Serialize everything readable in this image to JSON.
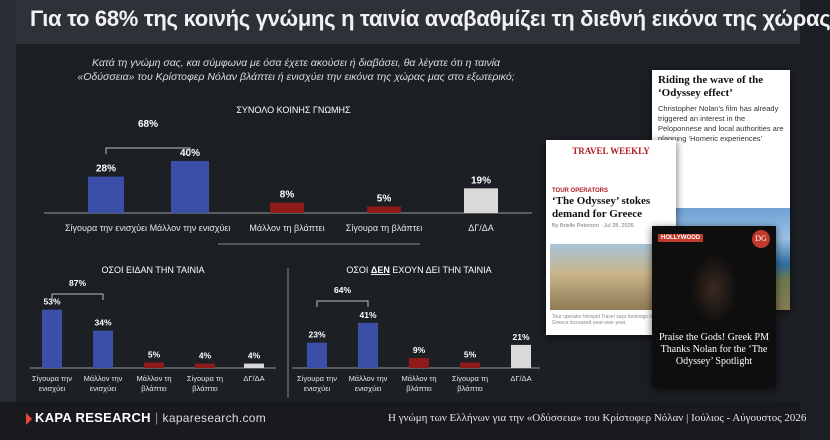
{
  "title": "Για το 68% της κοινής γνώμης η ταινία αναβαθμίζει τη διεθνή εικόνα της χώρας",
  "question_line1": "Κατά τη γνώμη σας, και σύμφωνα με όσα έχετε ακούσει ή διαβάσει, θα λέγατε ότι η ταινία",
  "question_line2": "«Οδύσσεια» του Κρίστοφερ Νόλαν βλάπτει ή ενισχύει την εικόνα της χώρας μας στο εξωτερικό;",
  "colors": {
    "blue": "#3c4fa8",
    "red": "#8f1a1a",
    "gray": "#d9d9d9",
    "bracket": "#bdbdbd"
  },
  "chart_data": [
    {
      "type": "bar",
      "title": "ΣΥΝΟΛΟ ΚΟΙΝΗΣ ΓΝΩΜΗΣ",
      "categories": [
        "Σίγουρα την ενισχύει",
        "Μάλλον την ενισχύει",
        "Μάλλον τη βλάπτει",
        "Σίγουρα τη βλάπτει",
        "ΔΓ/ΔΑ"
      ],
      "values": [
        28,
        40,
        8,
        5,
        19
      ],
      "value_labels": [
        "28%",
        "40%",
        "8%",
        "5%",
        "19%"
      ],
      "bar_colors": [
        "blue",
        "blue",
        "red",
        "red",
        "gray"
      ],
      "bracket": {
        "from": 0,
        "to": 1,
        "label": "68%"
      }
    },
    {
      "type": "bar",
      "title": "ΟΣΟΙ ΕΙΔΑΝ ΤΗΝ ΤΑΙΝΙΑ",
      "categories": [
        "Σίγουρα την ενισχύει",
        "Μάλλον την ενισχύει",
        "Μάλλον τη βλάπτει",
        "Σίγουρα τη βλάπτει",
        "ΔΓ/ΔΑ"
      ],
      "values": [
        53,
        34,
        5,
        4,
        4
      ],
      "value_labels": [
        "53%",
        "34%",
        "5%",
        "4%",
        "4%"
      ],
      "bar_colors": [
        "blue",
        "blue",
        "red",
        "red",
        "gray"
      ],
      "bracket": {
        "from": 0,
        "to": 1,
        "label": "87%"
      }
    },
    {
      "type": "bar",
      "title_pre": "ΟΣΟΙ ",
      "title_emph": "ΔΕΝ",
      "title_post": " ΕΧΟΥΝ ΔΕΙ ΤΗΝ ΤΑΙΝΙΑ",
      "categories": [
        "Σίγουρα την ενισχύει",
        "Μάλλον την ενισχύει",
        "Μάλλον τη βλάπτει",
        "Σίγουρα τη βλάπτει",
        "ΔΓ/ΔΑ"
      ],
      "values": [
        23,
        41,
        9,
        5,
        21
      ],
      "value_labels": [
        "23%",
        "41%",
        "9%",
        "5%",
        "21%"
      ],
      "bar_colors": [
        "blue",
        "blue",
        "red",
        "red",
        "gray"
      ],
      "bracket": {
        "from": 0,
        "to": 1,
        "label": "64%"
      }
    }
  ],
  "cards": {
    "card1": {
      "headline": "Riding the wave of the ‘Odyssey effect’",
      "body": "Christopher Nolan’s film has already triggered an interest in the Peloponnese and local authorities are planning ‘Homeric experiences’"
    },
    "card2": {
      "masthead": "TRAVEL WEEKLY",
      "tag": "TOUR OPERATORS",
      "headline": "‘The Odyssey’ stokes demand for Greece",
      "byline": "By Brielle Peterson · Jul 28, 2026",
      "caption": "Tour operator Intrepid Travel says bookings to Greece increased year-over-year."
    },
    "card3": {
      "label": "HOLLYWOOD",
      "badge": "DG",
      "headline": "Praise the Gods! Greek PM Thanks Nolan for the ‘The Odyssey’ Spotlight"
    }
  },
  "footer": {
    "brand": "KAPA RESEARCH",
    "separator": "|",
    "url": "kaparesearch.com",
    "right": "Η γνώμη των Ελλήνων για την «Οδύσσεια» του Κρίστοφερ Νόλαν | Ιούλιος - Αύγουστος 2026"
  }
}
